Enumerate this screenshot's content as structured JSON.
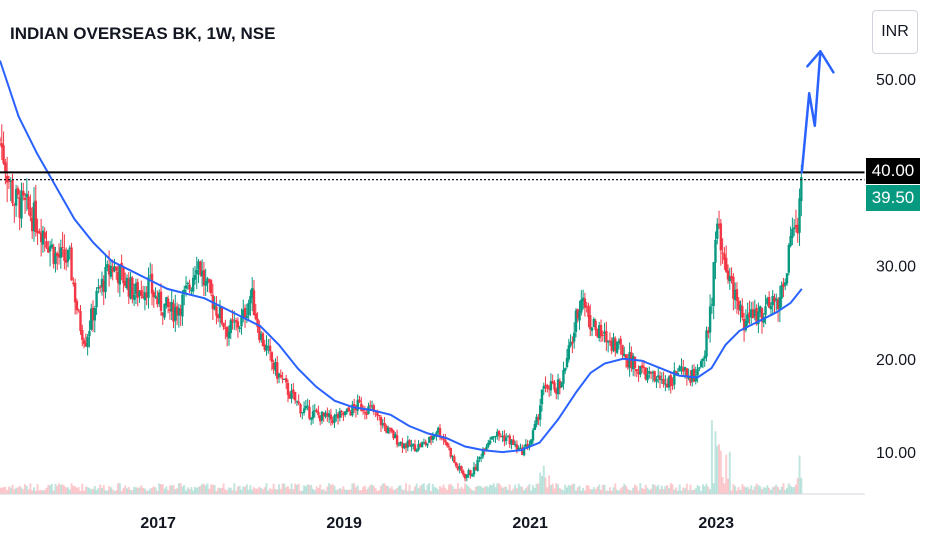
{
  "chart_data": {
    "type": "candlestick",
    "title": "INDIAN OVERSEAS BK, 1W, NSE",
    "currency": "INR",
    "y_ticks": [
      10,
      20,
      30,
      50
    ],
    "ylim": [
      5.5,
      58.5
    ],
    "x_ticks": [
      "2017",
      "2019",
      "2021",
      "2023"
    ],
    "x_tick_years": [
      2017,
      2019,
      2021,
      2023
    ],
    "xlim": [
      2015.3,
      2024.6
    ],
    "horizontal_line": {
      "value": 40.0,
      "label": "40.00",
      "color": "#000000"
    },
    "last_price": {
      "value": 39.5,
      "label": "39.50",
      "color": "#089981"
    },
    "up_color": "#089981",
    "down_color": "#f23645",
    "ma_color": "#2962ff",
    "price_path": [
      [
        2015.3,
        43.5
      ],
      [
        2015.45,
        37.0
      ],
      [
        2015.6,
        36.0
      ],
      [
        2015.75,
        34.0
      ],
      [
        2015.9,
        31.0
      ],
      [
        2016.05,
        30.5
      ],
      [
        2016.15,
        24.0
      ],
      [
        2016.22,
        22.0
      ],
      [
        2016.35,
        27.0
      ],
      [
        2016.5,
        30.0
      ],
      [
        2016.6,
        29.0
      ],
      [
        2016.75,
        27.0
      ],
      [
        2016.9,
        28.0
      ],
      [
        2017.0,
        26.0
      ],
      [
        2017.15,
        25.0
      ],
      [
        2017.25,
        26.0
      ],
      [
        2017.35,
        28.0
      ],
      [
        2017.42,
        31.0
      ],
      [
        2017.5,
        28.0
      ],
      [
        2017.6,
        26.0
      ],
      [
        2017.75,
        23.0
      ],
      [
        2017.9,
        24.0
      ],
      [
        2018.0,
        27.0
      ],
      [
        2018.1,
        22.5
      ],
      [
        2018.25,
        19.0
      ],
      [
        2018.4,
        16.5
      ],
      [
        2018.55,
        14.5
      ],
      [
        2018.7,
        14.0
      ],
      [
        2018.85,
        13.5
      ],
      [
        2019.0,
        14.0
      ],
      [
        2019.15,
        15.0
      ],
      [
        2019.3,
        14.5
      ],
      [
        2019.45,
        12.5
      ],
      [
        2019.6,
        11.0
      ],
      [
        2019.75,
        10.5
      ],
      [
        2019.9,
        11.0
      ],
      [
        2020.0,
        12.5
      ],
      [
        2020.1,
        11.0
      ],
      [
        2020.2,
        8.5
      ],
      [
        2020.3,
        7.5
      ],
      [
        2020.4,
        8.0
      ],
      [
        2020.5,
        10.5
      ],
      [
        2020.6,
        12.0
      ],
      [
        2020.75,
        11.5
      ],
      [
        2020.9,
        10.0
      ],
      [
        2021.0,
        11.0
      ],
      [
        2021.08,
        13.5
      ],
      [
        2021.15,
        18.0
      ],
      [
        2021.25,
        16.5
      ],
      [
        2021.35,
        18.0
      ],
      [
        2021.45,
        22.0
      ],
      [
        2021.55,
        27.0
      ],
      [
        2021.65,
        24.0
      ],
      [
        2021.75,
        22.5
      ],
      [
        2021.85,
        22.0
      ],
      [
        2021.95,
        21.5
      ],
      [
        2022.05,
        20.0
      ],
      [
        2022.15,
        19.0
      ],
      [
        2022.3,
        18.0
      ],
      [
        2022.45,
        17.5
      ],
      [
        2022.6,
        18.5
      ],
      [
        2022.75,
        18.0
      ],
      [
        2022.85,
        19.0
      ],
      [
        2022.95,
        26.0
      ],
      [
        2023.0,
        34.0
      ],
      [
        2023.1,
        30.0
      ],
      [
        2023.2,
        27.0
      ],
      [
        2023.3,
        24.0
      ],
      [
        2023.45,
        25.0
      ],
      [
        2023.6,
        25.5
      ],
      [
        2023.7,
        27.0
      ],
      [
        2023.8,
        32.0
      ],
      [
        2023.87,
        34.0
      ],
      [
        2023.92,
        39.5
      ]
    ],
    "ma_path": [
      [
        2015.3,
        52.0
      ],
      [
        2015.5,
        46.0
      ],
      [
        2015.7,
        42.0
      ],
      [
        2015.9,
        38.5
      ],
      [
        2016.1,
        35.0
      ],
      [
        2016.3,
        32.5
      ],
      [
        2016.5,
        30.5
      ],
      [
        2016.7,
        29.5
      ],
      [
        2016.9,
        28.5
      ],
      [
        2017.1,
        27.5
      ],
      [
        2017.3,
        27.0
      ],
      [
        2017.5,
        26.5
      ],
      [
        2017.7,
        25.5
      ],
      [
        2017.9,
        24.5
      ],
      [
        2018.1,
        23.5
      ],
      [
        2018.3,
        21.5
      ],
      [
        2018.5,
        19.0
      ],
      [
        2018.7,
        17.0
      ],
      [
        2018.9,
        15.5
      ],
      [
        2019.1,
        14.8
      ],
      [
        2019.3,
        14.5
      ],
      [
        2019.5,
        14.0
      ],
      [
        2019.7,
        12.8
      ],
      [
        2019.9,
        12.0
      ],
      [
        2020.1,
        11.5
      ],
      [
        2020.3,
        10.6
      ],
      [
        2020.5,
        10.2
      ],
      [
        2020.7,
        10.0
      ],
      [
        2020.9,
        10.2
      ],
      [
        2021.1,
        11.0
      ],
      [
        2021.3,
        13.5
      ],
      [
        2021.5,
        16.5
      ],
      [
        2021.65,
        18.5
      ],
      [
        2021.8,
        19.5
      ],
      [
        2022.0,
        20.0
      ],
      [
        2022.2,
        19.8
      ],
      [
        2022.4,
        19.0
      ],
      [
        2022.6,
        18.2
      ],
      [
        2022.8,
        18.0
      ],
      [
        2022.95,
        19.0
      ],
      [
        2023.1,
        21.5
      ],
      [
        2023.25,
        23.0
      ],
      [
        2023.45,
        24.0
      ],
      [
        2023.65,
        25.0
      ],
      [
        2023.8,
        26.0
      ],
      [
        2023.92,
        27.5
      ]
    ],
    "projection_arrow": [
      [
        2023.92,
        40.0
      ],
      [
        2024.0,
        48.5
      ],
      [
        2024.06,
        45.0
      ],
      [
        2024.12,
        53.0
      ]
    ],
    "volume_spikes": [
      [
        2021.15,
        0.35
      ],
      [
        2023.0,
        0.9
      ],
      [
        2023.1,
        0.5
      ],
      [
        2023.92,
        0.45
      ]
    ]
  }
}
